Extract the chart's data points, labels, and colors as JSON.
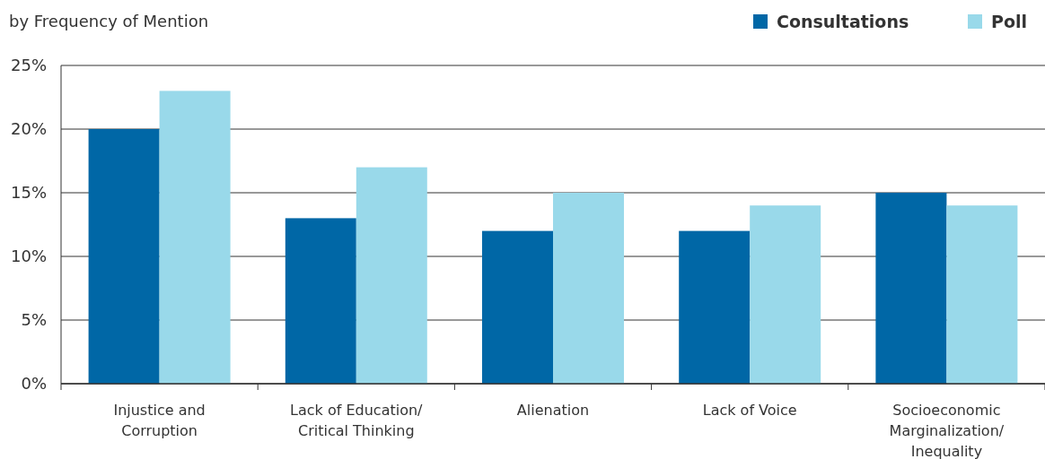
{
  "chart_data": {
    "type": "bar",
    "title": "by Frequency of Mention",
    "categories": [
      "Injustice and Corruption",
      "Lack of Education/ Critical Thinking",
      "Alienation",
      "Lack of Voice",
      "Socioeconomic Marginalization/ Inequality"
    ],
    "series": [
      {
        "name": "Consultations",
        "color": "#0067a6",
        "values": [
          20,
          13,
          12,
          12,
          15
        ]
      },
      {
        "name": "Poll",
        "color": "#99d9ea",
        "values": [
          23,
          17,
          15,
          14,
          14
        ]
      }
    ],
    "ylim": [
      0,
      25
    ],
    "yticks": [
      {
        "value": 0,
        "label": "0%"
      },
      {
        "value": 5,
        "label": "5%"
      },
      {
        "value": 10,
        "label": "10%"
      },
      {
        "value": 15,
        "label": "15%"
      },
      {
        "value": 20,
        "label": "20%"
      },
      {
        "value": 25,
        "label": "25%"
      }
    ],
    "grid": "y",
    "legend": "top right"
  }
}
